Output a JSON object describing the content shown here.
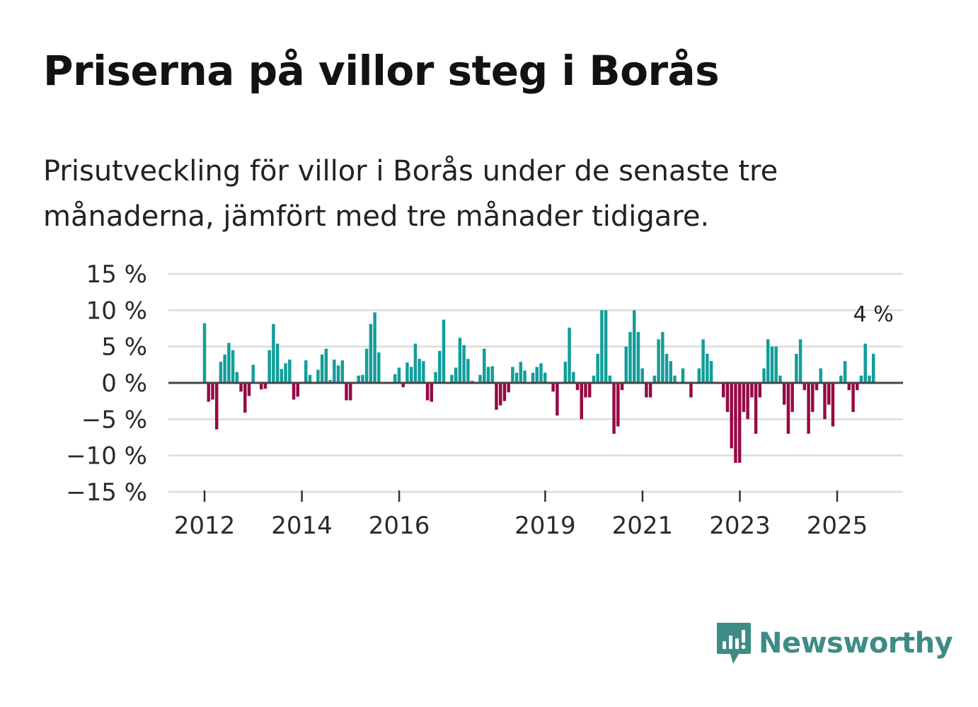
{
  "title": "Priserna på villor steg i Borås",
  "subtitle": "Prisutveckling för villor i Borås under de senaste tre månaderna, jämfört med tre månader tidigare.",
  "brand": {
    "name": "Newsworthy",
    "logo_icon": "newsworthy-chart-bubble-icon",
    "color": "#3d8c85"
  },
  "colors": {
    "positive": "#129e9a",
    "negative": "#960a44",
    "grid": "#dcdcdc",
    "zero_line": "#444444"
  },
  "chart_data": {
    "type": "bar",
    "unit": "%",
    "x_start": 2012.0,
    "x_step": 0.0833,
    "ylim": [
      -15,
      15
    ],
    "yticks": [
      15,
      10,
      5,
      0,
      -5,
      -10,
      -15
    ],
    "ytick_labels": [
      "15 %",
      "10 %",
      "5 %",
      "0 %",
      "−5 %",
      "−10 %",
      "−15 %"
    ],
    "xticks": [
      2012,
      2014,
      2016,
      2019,
      2021,
      2023,
      2025
    ],
    "xtick_labels": [
      "2012",
      "2014",
      "2016",
      "2019",
      "2021",
      "2023",
      "2025"
    ],
    "annotation": {
      "label": "4 %",
      "series_point": "last"
    },
    "values": [
      8.2,
      -2.6,
      -2.3,
      -6.4,
      2.9,
      3.9,
      5.5,
      4.5,
      1.5,
      -1.2,
      -4.1,
      -1.8,
      2.5,
      0,
      -0.9,
      -0.8,
      4.5,
      8.1,
      5.4,
      1.9,
      2.7,
      3.2,
      -2.3,
      -1.9,
      0,
      3.1,
      1.1,
      0,
      1.8,
      3.9,
      4.7,
      0.4,
      3.2,
      2.4,
      3.1,
      -2.4,
      -2.4,
      0,
      1,
      1.1,
      4.7,
      8.1,
      9.7,
      4.2,
      0,
      0,
      0,
      1.2,
      2.1,
      -0.6,
      2.8,
      2.2,
      5.4,
      3.3,
      3,
      -2.4,
      -2.6,
      1.5,
      4.4,
      8.7,
      0,
      1.1,
      2.1,
      6.2,
      5.2,
      3.3,
      0.3,
      0,
      1.1,
      4.7,
      2.2,
      2.3,
      -3.7,
      -3.1,
      -2.5,
      -1.3,
      2.2,
      1.4,
      2.9,
      1.7,
      0,
      1.4,
      2.2,
      2.7,
      1.4,
      0,
      -1.2,
      -4.5,
      0,
      2.9,
      7.6,
      1.5,
      -1,
      -5,
      -2,
      -2,
      1,
      4,
      10,
      10,
      1,
      -7,
      -6,
      -1,
      5,
      7,
      10,
      7,
      2,
      -2,
      -2,
      1,
      6,
      7,
      4,
      3,
      1,
      0,
      2,
      0,
      -2,
      0,
      2,
      6,
      4,
      3,
      0,
      0,
      -2,
      -4,
      -9,
      -11,
      -11,
      -4,
      -5,
      -2,
      -7,
      -2,
      2,
      6,
      5,
      5,
      1,
      -3,
      -7,
      -4,
      4,
      6,
      -1,
      -7,
      -4,
      -1,
      2,
      -5,
      -3,
      -6,
      0,
      1,
      3,
      -1,
      -4,
      -1,
      1,
      5.4,
      1,
      4
    ]
  }
}
